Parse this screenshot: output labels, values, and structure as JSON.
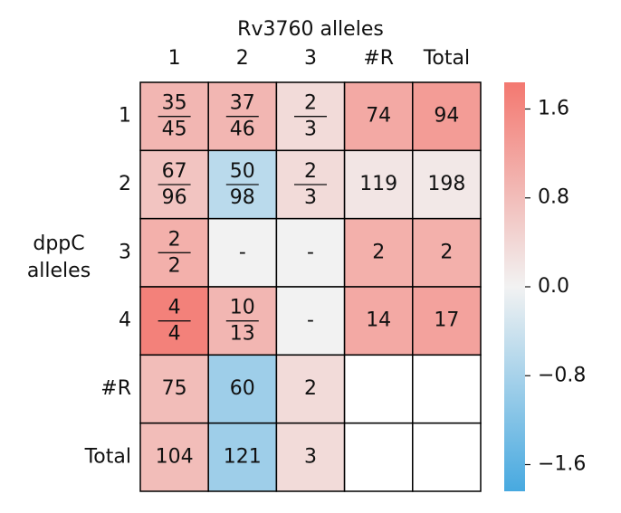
{
  "chart_data": {
    "type": "heatmap",
    "title": "Rv3760 alleles",
    "ylabel": "dppC\nalleles",
    "x_categories": [
      "1",
      "2",
      "3",
      "#R",
      "Total"
    ],
    "y_categories": [
      "1",
      "2",
      "3",
      "4",
      "#R",
      "Total"
    ],
    "values": [
      [
        0.9,
        0.9,
        0.35,
        1.1,
        1.3
      ],
      [
        0.7,
        -0.6,
        0.35,
        0.2,
        0.15
      ],
      [
        1.0,
        0,
        0,
        1.0,
        1.0
      ],
      [
        1.7,
        0.9,
        0,
        1.1,
        1.2
      ],
      [
        0.8,
        -0.9,
        0.35,
        null,
        null
      ],
      [
        0.8,
        -0.9,
        0.35,
        null,
        null
      ]
    ],
    "annotations": [
      [
        {
          "numerator": 35,
          "denominator": 45
        },
        {
          "numerator": 37,
          "denominator": 46
        },
        {
          "numerator": 2,
          "denominator": 3
        },
        74,
        94
      ],
      [
        {
          "numerator": 67,
          "denominator": 96
        },
        {
          "numerator": 50,
          "denominator": 98
        },
        {
          "numerator": 2,
          "denominator": 3
        },
        119,
        198
      ],
      [
        {
          "numerator": 2,
          "denominator": 2
        },
        "-",
        "-",
        2,
        2
      ],
      [
        {
          "numerator": 4,
          "denominator": 4
        },
        {
          "numerator": 10,
          "denominator": 13
        },
        "-",
        14,
        17
      ],
      [
        75,
        60,
        2,
        null,
        null
      ],
      [
        104,
        121,
        3,
        null,
        null
      ]
    ],
    "clim": [
      -1.84,
      1.84
    ],
    "cticks": [
      1.6,
      0.8,
      {
        "value": 0,
        "label": "0.0"
      },
      {
        "value": -0.8,
        "label": "−0.8"
      },
      {
        "value": -1.6,
        "label": "−1.6"
      }
    ],
    "colors": {
      "low": "#47a9e0",
      "mid": "#f2f2f2",
      "high": "#f37870",
      "missing": "#ffffff"
    }
  }
}
